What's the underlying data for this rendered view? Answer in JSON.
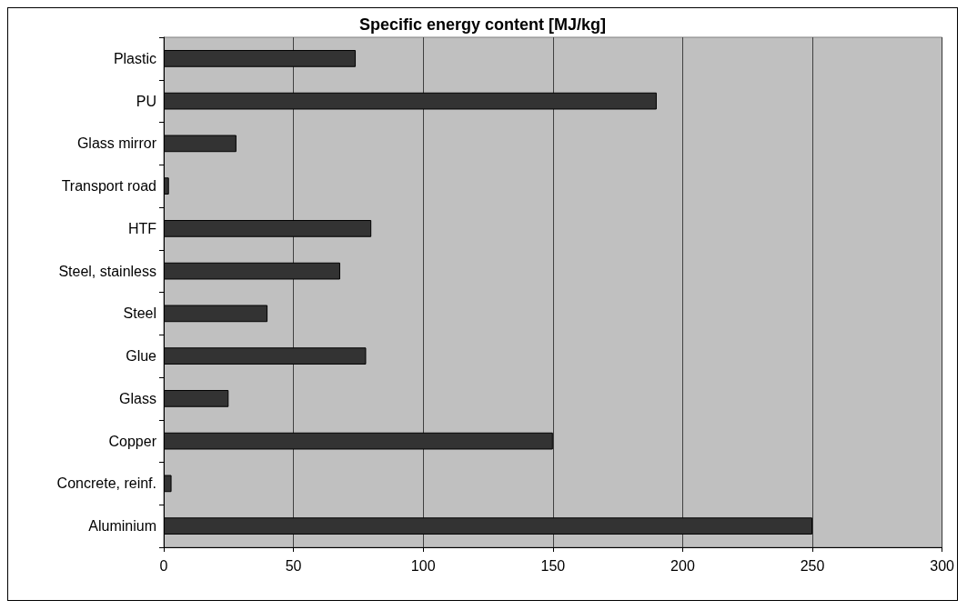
{
  "chart_data": {
    "type": "bar",
    "orientation": "horizontal",
    "title": "Specific energy content [MJ/kg]",
    "categories": [
      "Plastic",
      "PU",
      "Glass mirror",
      "Transport road",
      "HTF",
      "Steel, stainless",
      "Steel",
      "Glue",
      "Glass",
      "Copper",
      "Concrete, reinf.",
      "Aluminium"
    ],
    "values": [
      74,
      190,
      28,
      2,
      80,
      68,
      40,
      78,
      25,
      150,
      3,
      250
    ],
    "color": "#333333",
    "xlim": [
      0,
      300
    ],
    "xticks": [
      0,
      50,
      100,
      150,
      200,
      250,
      300
    ],
    "grid": "x"
  }
}
